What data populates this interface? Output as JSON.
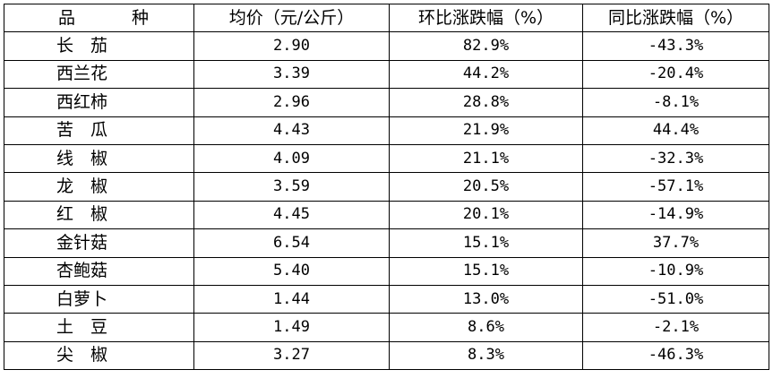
{
  "table": {
    "headers": {
      "variety": "品　种",
      "avg_price": "均价（元/公斤）",
      "mom_change": "环比涨跌幅（%）",
      "yoy_change": "同比涨跌幅（%）"
    },
    "rows": [
      {
        "variety": "长　茄",
        "avg_price": "2.90",
        "mom_change": "82.9%",
        "yoy_change": "-43.3%"
      },
      {
        "variety": "西兰花",
        "avg_price": "3.39",
        "mom_change": "44.2%",
        "yoy_change": "-20.4%"
      },
      {
        "variety": "西红柿",
        "avg_price": "2.96",
        "mom_change": "28.8%",
        "yoy_change": "-8.1%"
      },
      {
        "variety": "苦　瓜",
        "avg_price": "4.43",
        "mom_change": "21.9%",
        "yoy_change": "44.4%"
      },
      {
        "variety": "线　椒",
        "avg_price": "4.09",
        "mom_change": "21.1%",
        "yoy_change": "-32.3%"
      },
      {
        "variety": "龙　椒",
        "avg_price": "3.59",
        "mom_change": "20.5%",
        "yoy_change": "-57.1%"
      },
      {
        "variety": "红　椒",
        "avg_price": "4.45",
        "mom_change": "20.1%",
        "yoy_change": "-14.9%"
      },
      {
        "variety": "金针菇",
        "avg_price": "6.54",
        "mom_change": "15.1%",
        "yoy_change": "37.7%"
      },
      {
        "variety": "杏鲍菇",
        "avg_price": "5.40",
        "mom_change": "15.1%",
        "yoy_change": "-10.9%"
      },
      {
        "variety": "白萝卜",
        "avg_price": "1.44",
        "mom_change": "13.0%",
        "yoy_change": "-51.0%"
      },
      {
        "variety": "土　豆",
        "avg_price": "1.49",
        "mom_change": "8.6%",
        "yoy_change": "-2.1%"
      },
      {
        "variety": "尖　椒",
        "avg_price": "3.27",
        "mom_change": "8.3%",
        "yoy_change": "-46.3%"
      }
    ]
  }
}
